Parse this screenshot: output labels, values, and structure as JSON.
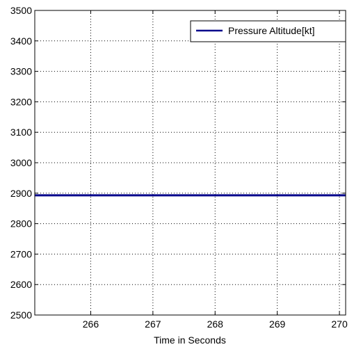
{
  "chart_data": {
    "type": "line",
    "title": "",
    "xlabel": "Time in Seconds",
    "ylabel": "",
    "xlim": [
      265.1,
      270.1
    ],
    "ylim": [
      2500,
      3500
    ],
    "x_ticks": [
      266,
      267,
      268,
      269,
      270
    ],
    "y_ticks": [
      2500,
      2600,
      2700,
      2800,
      2900,
      3000,
      3100,
      3200,
      3300,
      3400,
      3500
    ],
    "grid": true,
    "legend_position": "top-right",
    "series": [
      {
        "name": "Pressure Altitude[kt]",
        "color": "#00008b",
        "x": [
          265.1,
          266,
          267,
          268,
          269,
          270,
          270.1
        ],
        "y": [
          2893,
          2893,
          2893,
          2893,
          2893,
          2893,
          2893
        ]
      }
    ]
  }
}
